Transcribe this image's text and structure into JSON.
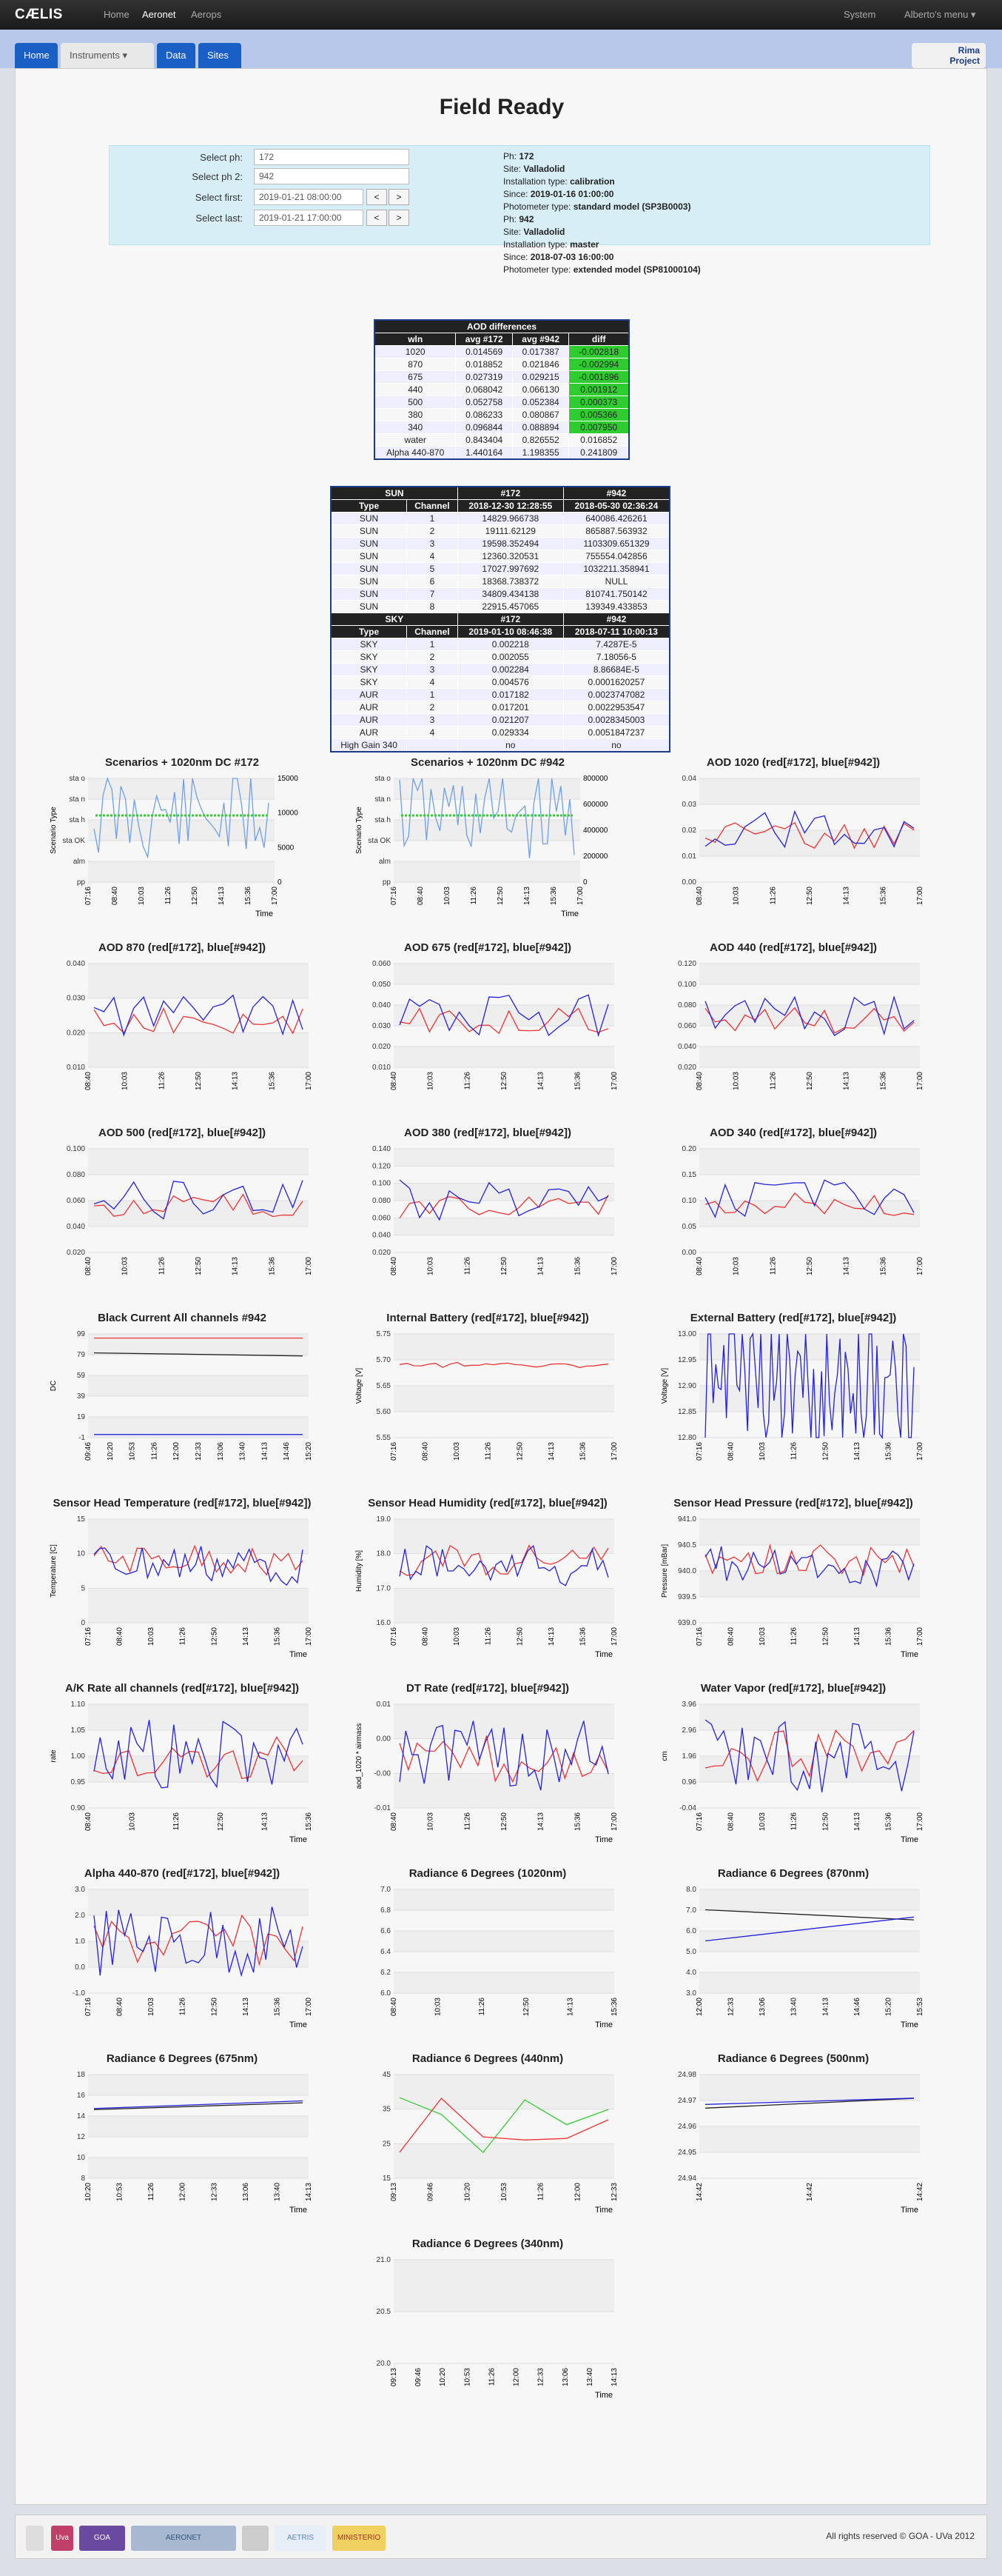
{
  "nav": {
    "brand": "CÆLIS",
    "items": [
      "Home",
      "Aeronet",
      "Aerops"
    ],
    "active": "Aeronet",
    "right": [
      "System",
      "Alberto's menu ▾"
    ]
  },
  "tabs": [
    "Home",
    "Instruments ▾",
    "Data",
    "Sites"
  ],
  "rima": "Rima\nProject",
  "page_title": "Field Ready",
  "form": {
    "ph_label": "Select ph:",
    "ph_value": "172",
    "ph2_label": "Select ph 2:",
    "ph2_value": "942",
    "first_label": "Select first:",
    "first_value": "2019-01-21 08:00:00",
    "last_label": "Select last:",
    "last_value": "2019-01-21 17:00:00",
    "prev": "<",
    "next": ">"
  },
  "info1": {
    "ph": "172",
    "site": "Valladolid",
    "inst": "calibration",
    "since": "2019-01-16 01:00:00",
    "model": "standard model (SP3B0003)"
  },
  "info2": {
    "ph": "942",
    "site": "Valladolid",
    "inst": "master",
    "since": "2018-07-03 16:00:00",
    "model": "extended model (SP81000104)"
  },
  "info_labels": {
    "ph": "Ph: ",
    "site": "Site: ",
    "inst": "Installation type: ",
    "since": "Since: ",
    "model": "Photometer type: "
  },
  "aod_table": {
    "title": "AOD differences",
    "headers": [
      "wln",
      "avg #172",
      "avg #942",
      "diff"
    ],
    "rows": [
      [
        "1020",
        "0.014569",
        "0.017387",
        "-0.002818"
      ],
      [
        "870",
        "0.018852",
        "0.021846",
        "-0.002994"
      ],
      [
        "675",
        "0.027319",
        "0.029215",
        "-0.001896"
      ],
      [
        "440",
        "0.068042",
        "0.066130",
        "0.001912"
      ],
      [
        "500",
        "0.052758",
        "0.052384",
        "0.000373"
      ],
      [
        "380",
        "0.086233",
        "0.080867",
        "0.005366"
      ],
      [
        "340",
        "0.096844",
        "0.088894",
        "0.007950"
      ],
      [
        "water",
        "0.843404",
        "0.826552",
        "0.016852"
      ],
      [
        "Alpha 440-870",
        "1.440164",
        "1.198355",
        "0.241809"
      ]
    ],
    "green_rows": 7
  },
  "cal_table": {
    "sun_header": [
      "SUN",
      "#172",
      "#942"
    ],
    "sun_sub": [
      "Type",
      "Channel",
      "2018-12-30 12:28:55",
      "2018-05-30 02:36:24"
    ],
    "sun_rows": [
      [
        "SUN",
        "1",
        "14829.966738",
        "640086.426261"
      ],
      [
        "SUN",
        "2",
        "19111.62129",
        "865887.563932"
      ],
      [
        "SUN",
        "3",
        "19598.352494",
        "1103309.651329"
      ],
      [
        "SUN",
        "4",
        "12360.320531",
        "755554.042856"
      ],
      [
        "SUN",
        "5",
        "17027.997692",
        "1032211.358941"
      ],
      [
        "SUN",
        "6",
        "18368.738372",
        "NULL"
      ],
      [
        "SUN",
        "7",
        "34809.434138",
        "810741.750142"
      ],
      [
        "SUN",
        "8",
        "22915.457065",
        "139349.433853"
      ]
    ],
    "sky_header": [
      "SKY",
      "#172",
      "#942"
    ],
    "sky_sub": [
      "Type",
      "Channel",
      "2019-01-10 08:46:38",
      "2018-07-11 10:00:13"
    ],
    "sky_rows": [
      [
        "SKY",
        "1",
        "0.002218",
        "7.4287E-5"
      ],
      [
        "SKY",
        "2",
        "0.002055",
        "7.18056-5"
      ],
      [
        "SKY",
        "3",
        "0.002284",
        "8.86684E-5"
      ],
      [
        "SKY",
        "4",
        "0.004576",
        "0.0001620257"
      ],
      [
        "AUR",
        "1",
        "0.017182",
        "0.0023747082"
      ],
      [
        "AUR",
        "2",
        "0.017201",
        "0.0022953547"
      ],
      [
        "AUR",
        "3",
        "0.021207",
        "0.0028345003"
      ],
      [
        "AUR",
        "4",
        "0.029334",
        "0.0051847237"
      ],
      [
        "High Gain 340",
        "",
        "no",
        "no"
      ]
    ]
  },
  "charts": [
    {
      "title": "Scenarios + 1020nm DC #172",
      "xt": [
        "07:16",
        "08:40",
        "10:03",
        "11:26",
        "12:50",
        "14:13",
        "15:36",
        "17:00"
      ],
      "yt": [
        "sta o",
        "sta n",
        "sta h",
        "sta OK",
        "alm",
        "pp"
      ],
      "y2": [
        "15000",
        "10000",
        "5000",
        "0"
      ],
      "xl": "Time",
      "yl": "Scenario Type"
    },
    {
      "title": "Scenarios + 1020nm DC #942",
      "xt": [
        "07:16",
        "08:40",
        "10:03",
        "11:26",
        "12:50",
        "14:13",
        "15:36",
        "17:00"
      ],
      "yt": [
        "sta o",
        "sta n",
        "sta h",
        "sta OK",
        "alm",
        "pp"
      ],
      "y2": [
        "800000",
        "600000",
        "400000",
        "200000",
        "0"
      ],
      "xl": "Time",
      "yl": "Scenario Type"
    },
    {
      "title": "AOD 1020 (red[#172], blue[#942])",
      "xt": [
        "08:40",
        "10:03",
        "11:26",
        "12:50",
        "14:13",
        "15:36",
        "17:00"
      ],
      "yt": [
        "0.04",
        "0.03",
        "0.02",
        "0.01",
        "0.00"
      ],
      "xl": "",
      "yl": ""
    },
    {
      "title": "AOD 870 (red[#172], blue[#942])",
      "xt": [
        "08:40",
        "10:03",
        "11:26",
        "12:50",
        "14:13",
        "15:36",
        "17:00"
      ],
      "yt": [
        "0.040",
        "0.030",
        "0.020",
        "0.010"
      ],
      "xl": "",
      "yl": ""
    },
    {
      "title": "AOD 675 (red[#172], blue[#942])",
      "xt": [
        "08:40",
        "10:03",
        "11:26",
        "12:50",
        "14:13",
        "15:36",
        "17:00"
      ],
      "yt": [
        "0.060",
        "0.050",
        "0.040",
        "0.030",
        "0.020",
        "0.010"
      ],
      "xl": "",
      "yl": ""
    },
    {
      "title": "AOD 440 (red[#172], blue[#942])",
      "xt": [
        "08:40",
        "10:03",
        "11:26",
        "12:50",
        "14:13",
        "15:36",
        "17:00"
      ],
      "yt": [
        "0.120",
        "0.100",
        "0.080",
        "0.060",
        "0.040",
        "0.020"
      ],
      "xl": "",
      "yl": ""
    },
    {
      "title": "AOD 500 (red[#172], blue[#942])",
      "xt": [
        "08:40",
        "10:03",
        "11:26",
        "12:50",
        "14:13",
        "15:36",
        "17:00"
      ],
      "yt": [
        "0.100",
        "0.080",
        "0.060",
        "0.040",
        "0.020"
      ],
      "xl": "",
      "yl": ""
    },
    {
      "title": "AOD 380 (red[#172], blue[#942])",
      "xt": [
        "08:40",
        "10:03",
        "11:26",
        "12:50",
        "14:13",
        "15:36",
        "17:00"
      ],
      "yt": [
        "0.140",
        "0.120",
        "0.100",
        "0.080",
        "0.060",
        "0.040",
        "0.020"
      ],
      "xl": "",
      "yl": ""
    },
    {
      "title": "AOD 340 (red[#172], blue[#942])",
      "xt": [
        "08:40",
        "10:03",
        "11:26",
        "12:50",
        "14:13",
        "15:36",
        "17:00"
      ],
      "yt": [
        "0.20",
        "0.15",
        "0.10",
        "0.05",
        "0.00"
      ],
      "xl": "",
      "yl": ""
    },
    {
      "title": "Black Current All channels #942",
      "xt": [
        "09:46",
        "10:20",
        "10:53",
        "11:26",
        "12:00",
        "12:33",
        "13:06",
        "13:40",
        "14:13",
        "14:46",
        "15:20"
      ],
      "yt": [
        "99",
        "79",
        "59",
        "39",
        "19",
        "-1"
      ],
      "xl": "",
      "yl": "DC"
    },
    {
      "title": "Internal Battery (red[#172], blue[#942])",
      "xt": [
        "07:16",
        "08:40",
        "10:03",
        "11:26",
        "12:50",
        "14:13",
        "15:36",
        "17:00"
      ],
      "yt": [
        "5.75",
        "5.70",
        "5.65",
        "5.60",
        "5.55"
      ],
      "xl": "",
      "yl": "Voltage [V]"
    },
    {
      "title": "External Battery (red[#172], blue[#942])",
      "xt": [
        "07:16",
        "08:40",
        "10:03",
        "11:26",
        "12:50",
        "14:13",
        "15:36",
        "17:00"
      ],
      "yt": [
        "13.00",
        "12.95",
        "12.90",
        "12.85",
        "12.80"
      ],
      "xl": "",
      "yl": "Voltage [V]"
    },
    {
      "title": "Sensor Head Temperature (red[#172], blue[#942])",
      "xt": [
        "07:16",
        "08:40",
        "10:03",
        "11:26",
        "12:50",
        "14:13",
        "15:36",
        "17:00"
      ],
      "yt": [
        "15",
        "10",
        "5",
        "0"
      ],
      "xl": "Time",
      "yl": "Temperature [C]"
    },
    {
      "title": "Sensor Head Humidity (red[#172], blue[#942])",
      "xt": [
        "07:16",
        "08:40",
        "10:03",
        "11:26",
        "12:50",
        "14:13",
        "15:36",
        "17:00"
      ],
      "yt": [
        "19.0",
        "18.0",
        "17.0",
        "16.0"
      ],
      "xl": "Time",
      "yl": "Humidity [%]"
    },
    {
      "title": "Sensor Head Pressure (red[#172], blue[#942])",
      "xt": [
        "07:16",
        "08:40",
        "10:03",
        "11:26",
        "12:50",
        "14:13",
        "15:36",
        "17:00"
      ],
      "yt": [
        "941.0",
        "940.5",
        "940.0",
        "939.5",
        "939.0"
      ],
      "xl": "Time",
      "yl": "Pressure [mBar]"
    },
    {
      "title": "A/K Rate all channels (red[#172], blue[#942])",
      "xt": [
        "08:40",
        "10:03",
        "11:26",
        "12:50",
        "14:13",
        "15:36"
      ],
      "yt": [
        "1.10",
        "1.05",
        "1.00",
        "0.95",
        "0.90"
      ],
      "xl": "Time",
      "yl": "rate"
    },
    {
      "title": "DT Rate (red[#172], blue[#942])",
      "xt": [
        "08:40",
        "10:03",
        "11:26",
        "12:50",
        "14:13",
        "15:36",
        "17:00"
      ],
      "yt": [
        "0.01",
        "0.00",
        "-0.00",
        "-0.01"
      ],
      "xl": "Time",
      "yl": "aod_1020 * airmass"
    },
    {
      "title": "Water Vapor (red[#172], blue[#942])",
      "xt": [
        "07:16",
        "08:40",
        "10:03",
        "11:26",
        "12:50",
        "14:13",
        "15:36",
        "17:00"
      ],
      "yt": [
        "3.96",
        "2.96",
        "1.96",
        "0.96",
        "-0.04"
      ],
      "xl": "Time",
      "yl": "cm"
    },
    {
      "title": "Alpha 440-870 (red[#172], blue[#942])",
      "xt": [
        "07:16",
        "08:40",
        "10:03",
        "11:26",
        "12:50",
        "14:13",
        "15:36",
        "17:00"
      ],
      "yt": [
        "3.0",
        "2.0",
        "1.0",
        "0.0",
        "-1.0"
      ],
      "xl": "Time",
      "yl": ""
    },
    {
      "title": "Radiance 6 Degrees (1020nm)",
      "xt": [
        "08:40",
        "10:03",
        "11:26",
        "12:50",
        "14:13",
        "15:36"
      ],
      "yt": [
        "7.0",
        "6.8",
        "6.6",
        "6.4",
        "6.2",
        "6.0"
      ],
      "xl": "Time",
      "yl": ""
    },
    {
      "title": "Radiance 6 Degrees (870nm)",
      "xt": [
        "12:00",
        "12:33",
        "13:06",
        "13:40",
        "14:13",
        "14:46",
        "15:20",
        "15:53"
      ],
      "yt": [
        "8.0",
        "7.0",
        "6.0",
        "5.0",
        "4.0",
        "3.0"
      ],
      "xl": "Time",
      "yl": ""
    },
    {
      "title": "Radiance 6 Degrees (675nm)",
      "xt": [
        "10:20",
        "10:53",
        "11:26",
        "12:00",
        "12:33",
        "13:06",
        "13:40",
        "14:13"
      ],
      "yt": [
        "18",
        "16",
        "14",
        "12",
        "10",
        "8"
      ],
      "xl": "Time",
      "yl": ""
    },
    {
      "title": "Radiance 6 Degrees (440nm)",
      "xt": [
        "09:13",
        "09:46",
        "10:20",
        "10:53",
        "11:26",
        "12:00",
        "12:33"
      ],
      "yt": [
        "45",
        "35",
        "25",
        "15"
      ],
      "xl": "Time",
      "yl": ""
    },
    {
      "title": "Radiance 6 Degrees (500nm)",
      "xt": [
        "14:42",
        "14:42",
        "14:42"
      ],
      "yt": [
        "24.98",
        "24.97",
        "24.96",
        "24.95",
        "24.94"
      ],
      "xl": "Time",
      "yl": ""
    },
    {
      "title": "Radiance 6 Degrees (340nm)",
      "xt": [
        "09:13",
        "09:46",
        "10:20",
        "10:53",
        "11:26",
        "12:00",
        "12:33",
        "13:06",
        "13:40",
        "14:13"
      ],
      "yt": [
        "21.0",
        "20.5",
        "20.0"
      ],
      "xl": "Time",
      "yl": ""
    }
  ],
  "footer": {
    "copy": "All rights reserved © GOA - UVa 2012",
    "logos": [
      "Uva",
      "GOA",
      "AERONET",
      "",
      "AETRIS",
      "MINISTERIO"
    ]
  }
}
